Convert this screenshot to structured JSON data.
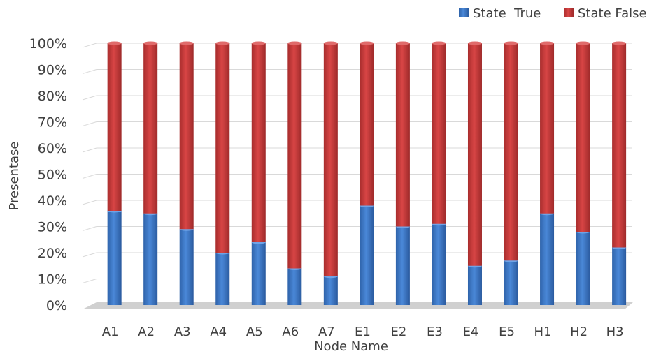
{
  "chart_data": {
    "type": "bar",
    "stacked": true,
    "stack_mode": "percent",
    "title": "",
    "xlabel": "Node Name",
    "ylabel": "Presentase",
    "ylim": [
      0,
      100
    ],
    "yticks": [
      "0%",
      "10%",
      "20%",
      "30%",
      "40%",
      "50%",
      "60%",
      "70%",
      "80%",
      "90%",
      "100%"
    ],
    "grid": true,
    "legend_position": "top-right",
    "categories": [
      "A1",
      "A2",
      "A3",
      "A4",
      "A5",
      "A6",
      "A7",
      "E1",
      "E2",
      "E3",
      "E4",
      "E5",
      "H1",
      "H2",
      "H3"
    ],
    "series": [
      {
        "name": "State  True",
        "color": "#3a76c8",
        "values": [
          36,
          35,
          29,
          20,
          24,
          14,
          11,
          38,
          30,
          31,
          15,
          17,
          35,
          28,
          22
        ]
      },
      {
        "name": "State False",
        "color": "#c93a3a",
        "values": [
          64,
          65,
          71,
          80,
          76,
          86,
          89,
          62,
          70,
          69,
          85,
          83,
          65,
          72,
          78
        ]
      }
    ]
  }
}
